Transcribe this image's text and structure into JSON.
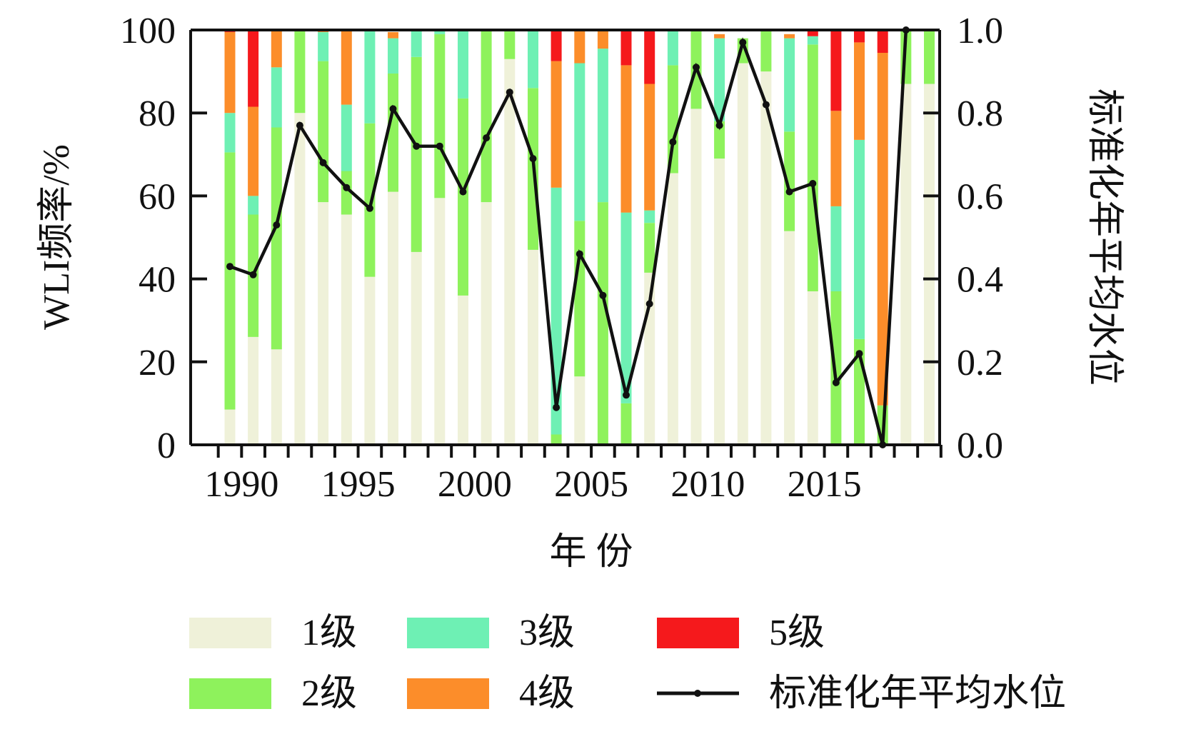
{
  "chart_data": {
    "type": "bar",
    "stacked": true,
    "title": "",
    "xlabel": "年 份",
    "ylabel_left": "WLI频率/%",
    "ylabel_right": "标准化年平均水位",
    "ylim_left": [
      0,
      100
    ],
    "ylim_right": [
      0,
      1.0
    ],
    "x_tick_labels": [
      "1990",
      "1995",
      "2000",
      "2005",
      "2010",
      "2015"
    ],
    "y_left_tick_labels": [
      "0",
      "20",
      "40",
      "60",
      "80",
      "100"
    ],
    "y_right_tick_labels": [
      "0.0",
      "0.2",
      "0.4",
      "0.6",
      "0.8",
      "1.0"
    ],
    "grid": false,
    "legend_position": "bottom",
    "categories": [
      1989,
      1990,
      1991,
      1992,
      1993,
      1994,
      1995,
      1996,
      1997,
      1998,
      1999,
      2000,
      2001,
      2002,
      2003,
      2004,
      2005,
      2006,
      2007,
      2008,
      2009,
      2010,
      2011,
      2012,
      2013,
      2014,
      2015,
      2016,
      2017,
      2018,
      2019
    ],
    "series": [
      {
        "name": "1级",
        "color": "#eff1d9",
        "values": [
          8.5,
          26,
          23,
          80,
          58.5,
          55.5,
          40.5,
          61,
          46.5,
          59.5,
          36,
          58.5,
          93,
          47,
          0,
          16.5,
          0,
          0,
          41.5,
          65.5,
          81,
          69,
          92,
          90,
          51.5,
          37,
          0,
          0,
          0,
          87,
          87
        ]
      },
      {
        "name": "2级",
        "color": "#8ef25c",
        "values": [
          62,
          29.5,
          53.5,
          20,
          34,
          10.5,
          37,
          28.5,
          47,
          39.5,
          47.5,
          41.5,
          7,
          39,
          2.5,
          37.5,
          58.5,
          10,
          12,
          26,
          19,
          9,
          6,
          10,
          24,
          59.5,
          37,
          25.5,
          9.5,
          13,
          13
        ]
      },
      {
        "name": "3级",
        "color": "#6ef0b4",
        "values": [
          9.5,
          4.5,
          14.5,
          0,
          7,
          16,
          22.5,
          8.5,
          6.5,
          1,
          16.5,
          0,
          0,
          14,
          59.5,
          38,
          37,
          46,
          3,
          8.5,
          0,
          20,
          0,
          0,
          22.5,
          2,
          20.5,
          48,
          0,
          0,
          0
        ]
      },
      {
        "name": "4级",
        "color": "#fc8d2a",
        "values": [
          19.5,
          21.5,
          9,
          0,
          0.5,
          18,
          0,
          1.5,
          0,
          0,
          0,
          0,
          0,
          0,
          30.5,
          8,
          4.5,
          35.5,
          30.5,
          0,
          0,
          1,
          0,
          0,
          1,
          0,
          23,
          23.5,
          85,
          0,
          0
        ]
      },
      {
        "name": "5级",
        "color": "#f5191c",
        "values": [
          0.5,
          18.5,
          0,
          0,
          0,
          0,
          0,
          0,
          0,
          0,
          0,
          0,
          0,
          0,
          7.5,
          0,
          0,
          8.5,
          13,
          0,
          0,
          0,
          0,
          0,
          0,
          1.5,
          19.5,
          3,
          5.5,
          0,
          0
        ]
      }
    ],
    "line_series": {
      "name": "标准化年平均水位",
      "color": "#111111",
      "values": [
        0.43,
        0.41,
        0.53,
        0.77,
        0.68,
        0.62,
        0.57,
        0.81,
        0.72,
        0.72,
        0.61,
        0.74,
        0.85,
        0.69,
        0.09,
        0.46,
        0.36,
        0.12,
        0.34,
        0.73,
        0.91,
        0.77,
        0.97,
        0.82,
        0.61,
        0.63,
        0.15,
        0.22,
        0.0,
        1.0,
        1.0
      ]
    }
  }
}
